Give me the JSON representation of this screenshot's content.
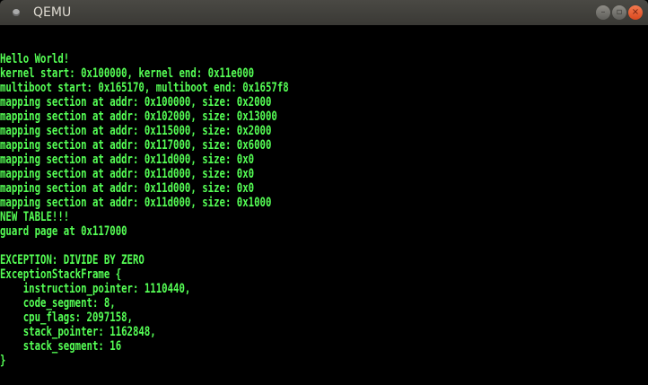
{
  "window": {
    "title": "QEMU",
    "minimize_icon": "minimize-icon",
    "maximize_icon": "maximize-icon",
    "close_icon": "close-icon"
  },
  "colors": {
    "text": "#55ff55",
    "background": "#000000"
  },
  "console": {
    "lines": [
      "Hello World!",
      "kernel start: 0x100000, kernel end: 0x11e000",
      "multiboot start: 0x165170, multiboot end: 0x1657f8",
      "mapping section at addr: 0x100000, size: 0x2000",
      "mapping section at addr: 0x102000, size: 0x13000",
      "mapping section at addr: 0x115000, size: 0x2000",
      "mapping section at addr: 0x117000, size: 0x6000",
      "mapping section at addr: 0x11d000, size: 0x0",
      "mapping section at addr: 0x11d000, size: 0x0",
      "mapping section at addr: 0x11d000, size: 0x0",
      "mapping section at addr: 0x11d000, size: 0x1000",
      "NEW TABLE!!!",
      "guard page at 0x117000",
      "",
      "EXCEPTION: DIVIDE BY ZERO",
      "ExceptionStackFrame {",
      "    instruction_pointer: 1110440,",
      "    code_segment: 8,",
      "    cpu_flags: 2097158,",
      "    stack_pointer: 1162848,",
      "    stack_segment: 16",
      "}"
    ]
  }
}
